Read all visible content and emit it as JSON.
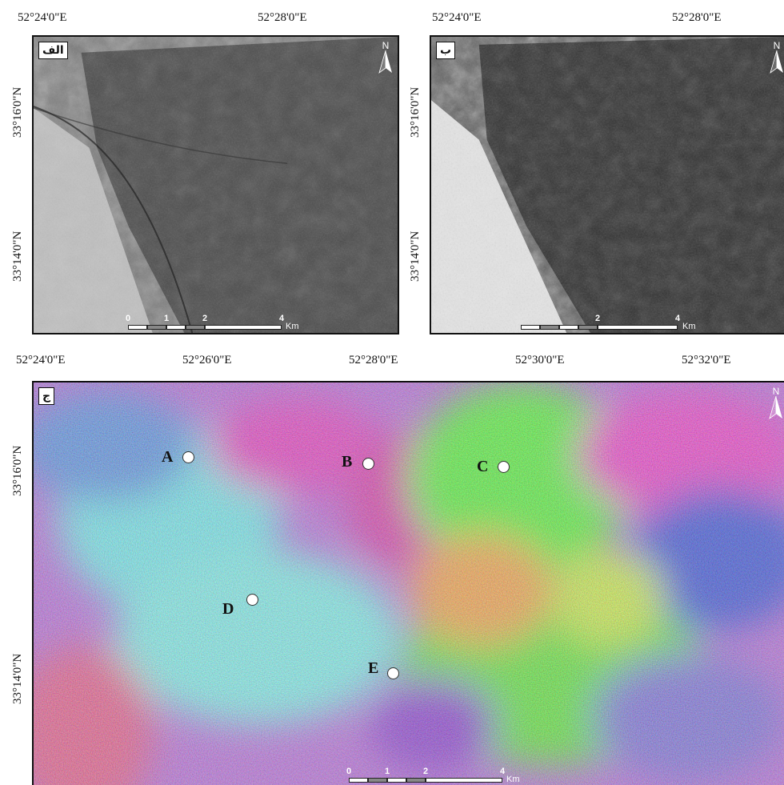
{
  "panels": {
    "a": {
      "label": "الف",
      "top_lons": [
        "52°24'0\"E",
        "52°28'0\"E"
      ],
      "left_lats": [
        "33°16'0\"N",
        "33°14'0\"N"
      ]
    },
    "b": {
      "label": "ب",
      "top_lons": [
        "52°24'0\"E",
        "52°28'0\"E"
      ],
      "left_lats": [
        "33°16'0\"N",
        "33°14'0\"N"
      ]
    },
    "c": {
      "label": "ج",
      "top_lons": [
        "52°24'0\"E",
        "52°26'0\"E",
        "52°28'0\"E",
        "52°30'0\"E",
        "52°32'0\"E"
      ],
      "left_lats": [
        "33°16'0\"N",
        "33°14'0\"N"
      ]
    }
  },
  "north_label": "N",
  "scalebars": {
    "a": {
      "ticks": [
        "0",
        "1",
        "2",
        "4"
      ],
      "unit": "Km"
    },
    "b": {
      "ticks": [
        "2",
        "4"
      ],
      "unit": "Km"
    },
    "c": {
      "ticks": [
        "0",
        "1",
        "2",
        "4"
      ],
      "unit": "Km"
    }
  },
  "sample_points": [
    {
      "id": "A",
      "label": "A"
    },
    {
      "id": "B",
      "label": "B"
    },
    {
      "id": "C",
      "label": "C"
    },
    {
      "id": "D",
      "label": "D"
    },
    {
      "id": "E",
      "label": "E"
    }
  ],
  "colors": {
    "frame": "#111111",
    "grayscale_dark": "#2b2b2b",
    "grayscale_light": "#d6d6d6",
    "composite_cyan": "#6fe3e8",
    "composite_magenta": "#e23dbf",
    "composite_green": "#56ef3a",
    "composite_blue": "#3d52d8"
  }
}
